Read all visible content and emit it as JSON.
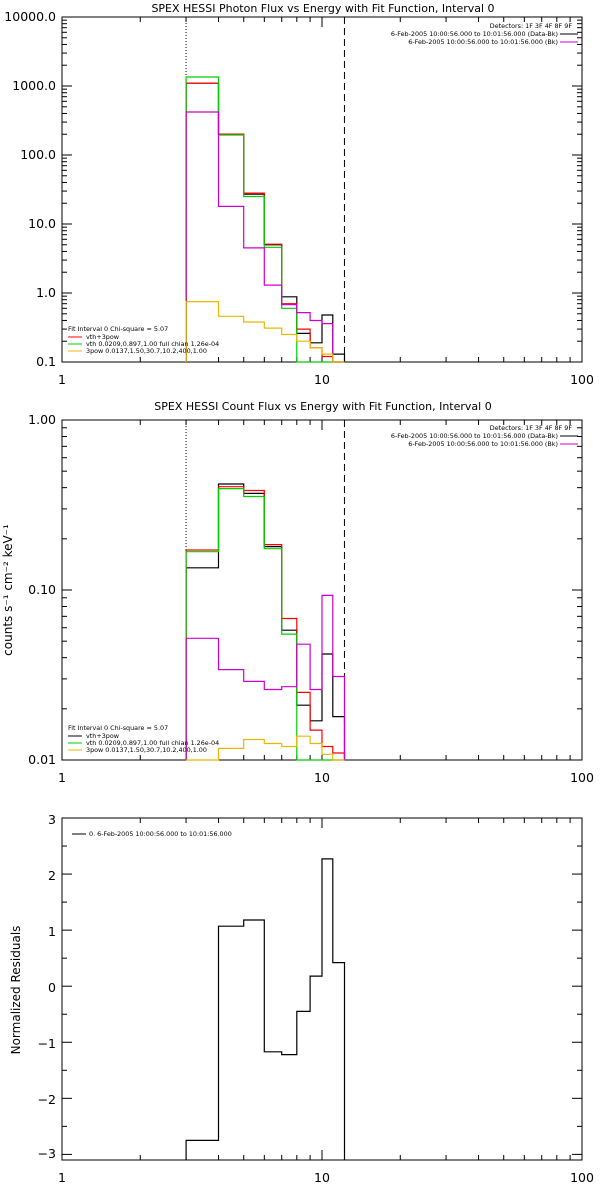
{
  "chart_data": [
    {
      "type": "line",
      "title": "SPEX HESSI Photon Flux vs Energy with Fit Function, Interval 0",
      "xlabel": "",
      "ylabel": "",
      "xscale": "log",
      "yscale": "log",
      "xlim": [
        1,
        100
      ],
      "ylim": [
        0.1,
        10000
      ],
      "x_ticks": [
        "1",
        "10",
        "100"
      ],
      "y_ticks": [
        "0.1",
        "1.0",
        "10.0",
        "100.0",
        "1000.0",
        "10000.0"
      ],
      "vlines": [
        {
          "x": 3,
          "style": "dotted"
        },
        {
          "x": 12.2,
          "style": "dashed"
        }
      ],
      "header": [
        "Detectors: 1F 3F 4F 8F 9F"
      ],
      "legend_right": [
        {
          "text": "6-Feb-2005 10:00:56.000 to 10:01:56.000 (Data-Bk)",
          "color": "#000000"
        },
        {
          "text": "6-Feb-2005 10:00:56.000 to 10:01:56.000 (Bk)",
          "color": "#cc00cc"
        }
      ],
      "fit_header": "Fit Interval 0   Chi-square = 5.07",
      "legend_left": [
        {
          "text": "vth+3pow",
          "color": "#ff0000"
        },
        {
          "text": "vth 0.0209,0.897,1.00  full chian 1.26e-04",
          "color": "#00cc00"
        },
        {
          "text": "3pow 0.0137,1.50,30.7,10.2,400,1.00",
          "color": "#e8b800"
        }
      ],
      "edges": [
        3,
        4,
        5,
        6,
        7,
        8,
        9,
        10,
        11,
        12.2
      ],
      "series": [
        {
          "color": "#000000",
          "values": [
            1100,
            200,
            27,
            5,
            0.88,
            0.26,
            0.19,
            0.48,
            0.13
          ]
        },
        {
          "color": "#ff0000",
          "values": [
            1100,
            200,
            28,
            5.1,
            0.7,
            0.3,
            0.16,
            0.12,
            0.1
          ]
        },
        {
          "color": "#00cc00",
          "values": [
            1350,
            195,
            25,
            4.6,
            0.6,
            0.09,
            0.08,
            0.08,
            0.08
          ]
        },
        {
          "color": "#cc00cc",
          "values": [
            420,
            18,
            4.5,
            1.3,
            0.68,
            0.52,
            0.4,
            0.36,
            0.1
          ]
        },
        {
          "color": "#e8b800",
          "values": [
            0.75,
            0.46,
            0.38,
            0.31,
            0.25,
            0.2,
            0.16,
            0.13,
            0.1
          ]
        }
      ]
    },
    {
      "type": "line",
      "title": "SPEX HESSI Count Flux vs Energy with Fit Function, Interval 0",
      "xlabel": "",
      "ylabel": "counts s⁻¹ cm⁻² keV⁻¹",
      "xscale": "log",
      "yscale": "log",
      "xlim": [
        1,
        100
      ],
      "ylim": [
        0.01,
        1
      ],
      "x_ticks": [
        "1",
        "10",
        "100"
      ],
      "y_ticks": [
        "0.01",
        "0.10",
        "1.00"
      ],
      "vlines": [
        {
          "x": 3,
          "style": "dotted"
        },
        {
          "x": 12.2,
          "style": "dashed"
        }
      ],
      "header": [
        "Detectors: 1F 3F 4F 8F 9F"
      ],
      "legend_right": [
        {
          "text": "6-Feb-2005 10:00:56.000 to 10:01:56.000 (Data-Bk)",
          "color": "#000000"
        },
        {
          "text": "6-Feb-2005 10:00:56.000 to 10:01:56.000 (Bk)",
          "color": "#cc00cc"
        }
      ],
      "fit_header": "Fit Interval 0   Chi-square = 5.07",
      "legend_left": [
        {
          "text": "vth+3pow",
          "color": "#000000"
        },
        {
          "text": "vth 0.0209,0.897,1.00  full chian 1.26e-04",
          "color": "#00cc00"
        },
        {
          "text": "3pow 0.0137,1.50,30.7,10.2,400,1.00",
          "color": "#e8b800"
        }
      ],
      "edges": [
        3,
        4,
        5,
        6,
        7,
        8,
        9,
        10,
        11,
        12.2
      ],
      "series": [
        {
          "color": "#000000",
          "values": [
            0.135,
            0.42,
            0.37,
            0.18,
            0.058,
            0.021,
            0.017,
            0.042,
            0.018
          ]
        },
        {
          "color": "#ff0000",
          "values": [
            0.172,
            0.405,
            0.385,
            0.185,
            0.068,
            0.025,
            0.015,
            0.012,
            0.011
          ]
        },
        {
          "color": "#00cc00",
          "values": [
            0.168,
            0.395,
            0.355,
            0.175,
            0.055,
            0.01,
            0.01,
            0.01,
            0.01
          ]
        },
        {
          "color": "#cc00cc",
          "values": [
            0.052,
            0.034,
            0.029,
            0.026,
            0.027,
            0.048,
            0.026,
            0.093,
            0.031
          ]
        },
        {
          "color": "#e8b800",
          "values": [
            0.01,
            0.0117,
            0.0132,
            0.0125,
            0.012,
            0.0138,
            0.0125,
            0.0108,
            0.01
          ]
        }
      ]
    },
    {
      "type": "line",
      "title": "",
      "xlabel": "",
      "ylabel": "Normalized Residuals",
      "xscale": "log",
      "yscale": "linear",
      "xlim": [
        1,
        100
      ],
      "ylim": [
        -3.1,
        3
      ],
      "x_ticks": [
        "1",
        "10",
        "100"
      ],
      "y_ticks": [
        "−3",
        "−2",
        "−1",
        "0",
        "1",
        "2",
        "3"
      ],
      "legend": [
        {
          "text": "0. 6-Feb-2005 10:00:56.000 to 10:01:56.000",
          "color": "#000000"
        }
      ],
      "edges": [
        3,
        4,
        5,
        6,
        7,
        8,
        9,
        10,
        11,
        12.2
      ],
      "series": [
        {
          "color": "#000000",
          "values": [
            -2.75,
            1.07,
            1.18,
            -1.17,
            -1.22,
            -0.45,
            0.18,
            2.27,
            0.42
          ]
        }
      ]
    }
  ]
}
